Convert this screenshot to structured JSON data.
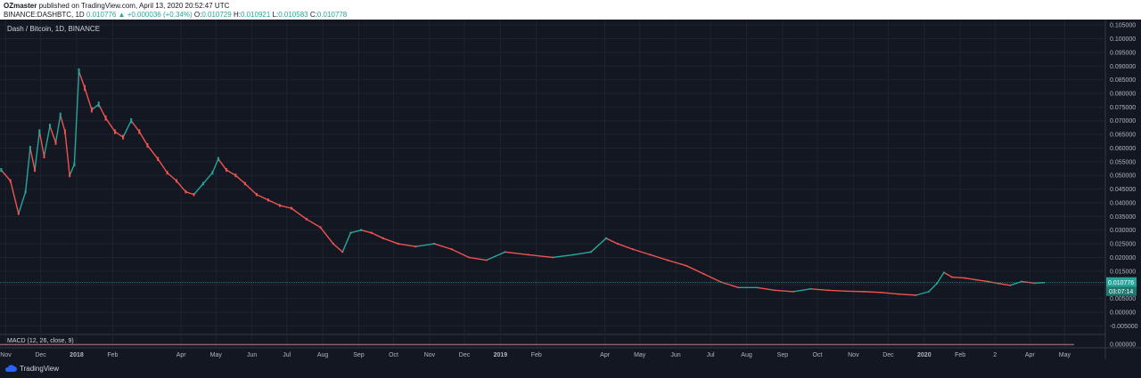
{
  "header": {
    "author": "OZmaster",
    "published_text": "published on TradingView.com, April 13, 2020 20:52:47 UTC",
    "symbol_line": "BINANCE:DASHBTC, 1D",
    "last": "0.010776",
    "change": "+0.000036 (+0.34%)",
    "o_label": "O:",
    "o_value": "0.010729",
    "h_label": "H:",
    "h_value": "0.010921",
    "l_label": "L:",
    "l_value": "0.010583",
    "c_label": "C:",
    "c_value": "0.010778"
  },
  "footer": {
    "brand": "TradingView"
  },
  "chart_data": {
    "type": "line",
    "title": "Dash / Bitcoin, 1D, BINANCE",
    "price_axis": {
      "ticks": [
        "0.105000",
        "0.100000",
        "0.095000",
        "0.090000",
        "0.085000",
        "0.080000",
        "0.075000",
        "0.070000",
        "0.065000",
        "0.060000",
        "0.055000",
        "0.050000",
        "0.045000",
        "0.040000",
        "0.035000",
        "0.030000",
        "0.025000",
        "0.020000",
        "0.015000",
        "0.010000",
        "0.005000",
        "0.000000",
        "-0.005000"
      ],
      "ylim": [
        -0.0075,
        0.107
      ]
    },
    "time_axis": {
      "labels": [
        "Nov",
        "Dec",
        "2018",
        "Feb",
        "Apr",
        "May",
        "Jun",
        "Jul",
        "Aug",
        "Sep",
        "Oct",
        "Nov",
        "Dec",
        "2019",
        "Feb",
        "Apr",
        "May",
        "Jun",
        "Jul",
        "Aug",
        "Sep",
        "Oct",
        "Nov",
        "Dec",
        "2020",
        "Feb",
        "2",
        "Apr",
        "May"
      ],
      "xlim": [
        "2017-10-27",
        "2020-06-05"
      ]
    },
    "current_price_label": "0.010776",
    "countdown_label": "03:07:14",
    "series": [
      {
        "color_up": "#26a69a",
        "color_down": "#ef5350",
        "x": [
          "2017-10-28",
          "2017-11-05",
          "2017-11-12",
          "2017-11-18",
          "2017-11-22",
          "2017-11-26",
          "2017-11-30",
          "2017-12-04",
          "2017-12-09",
          "2017-12-14",
          "2017-12-18",
          "2017-12-22",
          "2017-12-26",
          "2017-12-30",
          "2018-01-03",
          "2018-01-08",
          "2018-01-14",
          "2018-01-20",
          "2018-01-26",
          "2018-02-03",
          "2018-02-10",
          "2018-02-17",
          "2018-02-24",
          "2018-03-03",
          "2018-03-12",
          "2018-03-20",
          "2018-03-28",
          "2018-04-05",
          "2018-04-12",
          "2018-04-20",
          "2018-04-28",
          "2018-05-03",
          "2018-05-10",
          "2018-05-18",
          "2018-05-26",
          "2018-06-05",
          "2018-06-15",
          "2018-06-25",
          "2018-07-05",
          "2018-07-18",
          "2018-07-30",
          "2018-08-10",
          "2018-08-18",
          "2018-08-25",
          "2018-09-03",
          "2018-09-12",
          "2018-09-22",
          "2018-10-05",
          "2018-10-20",
          "2018-11-05",
          "2018-11-20",
          "2018-12-05",
          "2018-12-20",
          "2019-01-05",
          "2019-01-25",
          "2019-02-15",
          "2019-03-05",
          "2019-03-20",
          "2019-04-02",
          "2019-04-12",
          "2019-04-25",
          "2019-05-10",
          "2019-05-25",
          "2019-06-10",
          "2019-06-25",
          "2019-07-10",
          "2019-07-25",
          "2019-08-10",
          "2019-08-25",
          "2019-09-10",
          "2019-09-25",
          "2019-10-10",
          "2019-10-25",
          "2019-11-10",
          "2019-11-25",
          "2019-12-10",
          "2019-12-25",
          "2020-01-05",
          "2020-01-12",
          "2020-01-18",
          "2020-01-25",
          "2020-02-05",
          "2020-02-15",
          "2020-02-25",
          "2020-03-05",
          "2020-03-15",
          "2020-03-25",
          "2020-04-05",
          "2020-04-13"
        ],
        "values": [
          0.052,
          0.048,
          0.036,
          0.044,
          0.06,
          0.052,
          0.066,
          0.057,
          0.068,
          0.062,
          0.072,
          0.066,
          0.05,
          0.054,
          0.088,
          0.082,
          0.074,
          0.076,
          0.071,
          0.066,
          0.064,
          0.07,
          0.066,
          0.061,
          0.056,
          0.051,
          0.048,
          0.044,
          0.043,
          0.047,
          0.051,
          0.056,
          0.052,
          0.05,
          0.047,
          0.043,
          0.041,
          0.039,
          0.038,
          0.034,
          0.031,
          0.025,
          0.022,
          0.029,
          0.03,
          0.029,
          0.027,
          0.025,
          0.024,
          0.025,
          0.023,
          0.02,
          0.019,
          0.022,
          0.021,
          0.02,
          0.021,
          0.022,
          0.027,
          0.025,
          0.023,
          0.021,
          0.019,
          0.017,
          0.014,
          0.011,
          0.009,
          0.009,
          0.008,
          0.0075,
          0.0085,
          0.008,
          0.0077,
          0.0075,
          0.0072,
          0.0066,
          0.0062,
          0.0075,
          0.0105,
          0.0145,
          0.0128,
          0.0125,
          0.0118,
          0.0112,
          0.0105,
          0.0098,
          0.0112,
          0.0106,
          0.0108
        ]
      }
    ],
    "indicator": {
      "label": "MACD (12, 26, close, 9)",
      "ticks": [
        "0.000000"
      ]
    }
  }
}
